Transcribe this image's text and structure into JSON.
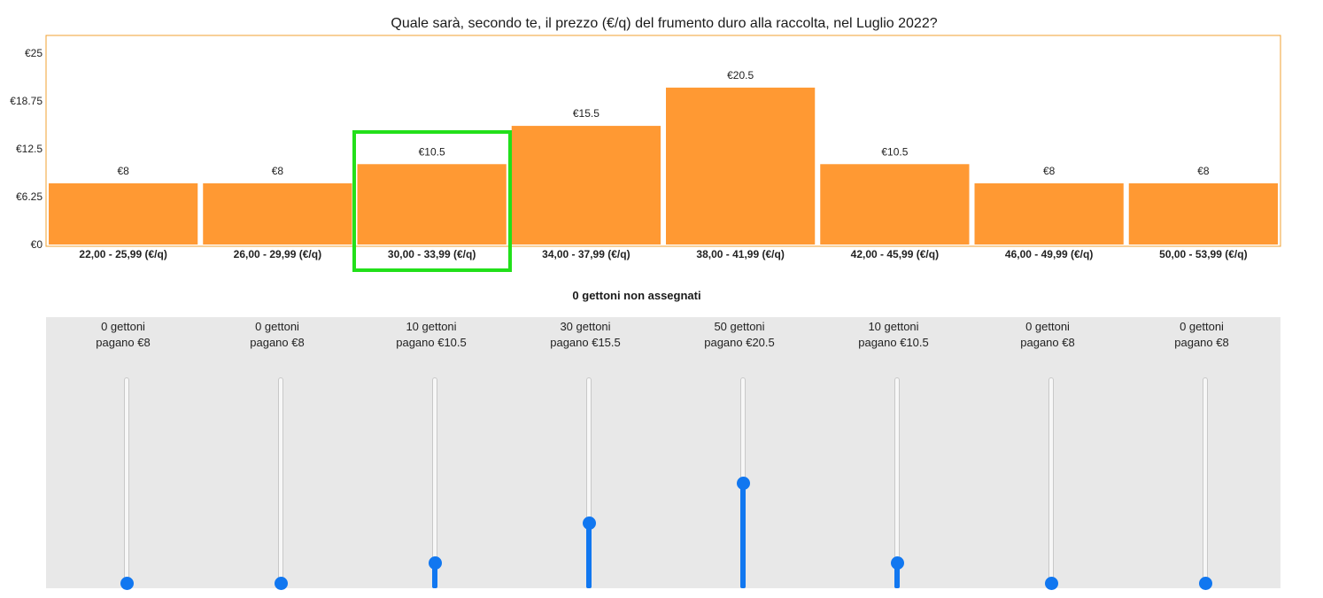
{
  "chart_data": {
    "type": "bar",
    "title": "Quale sarà, secondo te, il prezzo (€/q) del frumento duro alla raccolta, nel Luglio 2022?",
    "categories": [
      "22,00 - 25,99 (€/q)",
      "26,00 - 29,99 (€/q)",
      "30,00 - 33,99 (€/q)",
      "34,00 - 37,99 (€/q)",
      "38,00 - 41,99 (€/q)",
      "42,00 - 45,99 (€/q)",
      "46,00 - 49,99 (€/q)",
      "50,00 - 53,99 (€/q)"
    ],
    "values": [
      8,
      8,
      10.5,
      15.5,
      20.5,
      10.5,
      8,
      8
    ],
    "value_labels": [
      "€8",
      "€8",
      "€10.5",
      "€15.5",
      "€20.5",
      "€10.5",
      "€8",
      "€8"
    ],
    "yticks": [
      "€0",
      "€6.25",
      "€12.5",
      "€18.75",
      "€25"
    ],
    "ylim": [
      0,
      25
    ],
    "xlabel": "",
    "ylabel": "",
    "bar_color": "#ff9933",
    "frame_color": "#f0a030",
    "highlighted_category_index": 2,
    "highlight_color": "#22e01a"
  },
  "status": {
    "unassigned": "0 gettoni non assegnati"
  },
  "sliders": [
    {
      "tokens": "0 gettoni",
      "pays": "pagano €8",
      "value": 0
    },
    {
      "tokens": "0 gettoni",
      "pays": "pagano €8",
      "value": 0
    },
    {
      "tokens": "10 gettoni",
      "pays": "pagano €10.5",
      "value": 10
    },
    {
      "tokens": "30 gettoni",
      "pays": "pagano €15.5",
      "value": 30
    },
    {
      "tokens": "50 gettoni",
      "pays": "pagano €20.5",
      "value": 50
    },
    {
      "tokens": "10 gettoni",
      "pays": "pagano €10.5",
      "value": 10
    },
    {
      "tokens": "0 gettoni",
      "pays": "pagano €8",
      "value": 0
    },
    {
      "tokens": "0 gettoni",
      "pays": "pagano €8",
      "value": 0
    }
  ],
  "slider_scale_max": 100,
  "slider_color": "#1177f0"
}
